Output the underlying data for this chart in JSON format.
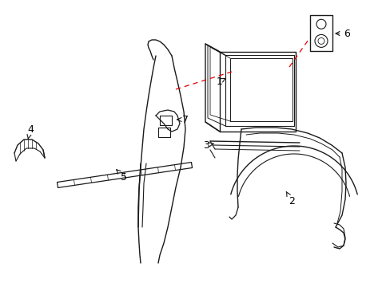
{
  "bg_color": "#ffffff",
  "line_color": "#1a1a1a",
  "label_color": "#000000",
  "dashed_color": "#e00000",
  "figsize": [
    4.89,
    3.6
  ],
  "dpi": 100
}
